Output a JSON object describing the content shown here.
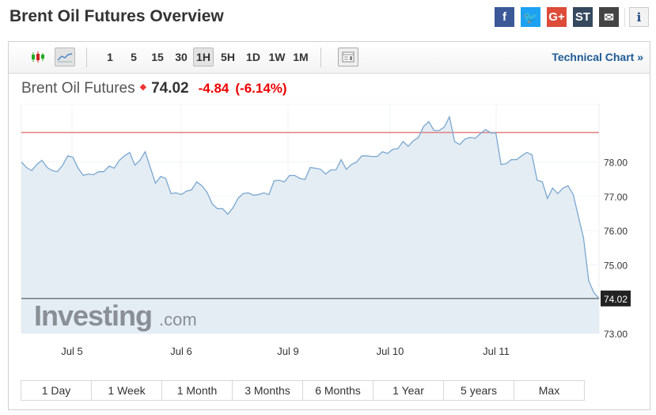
{
  "page_title": "Brent Oil Futures Overview",
  "social": [
    {
      "icon": "facebook-icon",
      "label": "f",
      "color": "#3b5998"
    },
    {
      "icon": "twitter-icon",
      "label": "🐦",
      "color": "#1da1f2"
    },
    {
      "icon": "google-plus-icon",
      "label": "G+",
      "color": "#dd4b39"
    },
    {
      "icon": "stocktwits-icon",
      "label": "ST",
      "color": "#34495e"
    },
    {
      "icon": "email-icon",
      "label": "✉",
      "color": "#444444"
    }
  ],
  "info_label": "i",
  "toolbar": {
    "intervals": [
      "1",
      "5",
      "15",
      "30",
      "1H",
      "5H",
      "1D",
      "1W",
      "1M"
    ],
    "active_interval": "1H",
    "technical_chart": "Technical Chart »"
  },
  "quote": {
    "name": "Brent Oil Futures",
    "price": "74.02",
    "change": "-4.84",
    "change_pct": "(-6.14%)",
    "direction": "down",
    "down_color": "#e00000"
  },
  "ranges": [
    "1 Day",
    "1 Week",
    "1 Month",
    "3 Months",
    "6 Months",
    "1 Year",
    "5 years",
    "Max"
  ],
  "watermark": "Investing.com",
  "chart_data": {
    "type": "area",
    "x_tick_labels": [
      "Jul 5",
      "Jul 6",
      "Jul 9",
      "Jul 10",
      "Jul 11"
    ],
    "y_tick_labels": [
      "78.00",
      "77.00",
      "76.00",
      "75.00",
      "73.00"
    ],
    "y_ticks": [
      78,
      77,
      76,
      75,
      73
    ],
    "ylim": [
      73,
      79.7
    ],
    "reference_line": {
      "value": 78.86,
      "color": "#e08080"
    },
    "last_price": {
      "value": 74.02,
      "label": "74.02"
    },
    "line_color": "#7ba7d0",
    "fill_color": "#e4edf4",
    "grid": true,
    "values": [
      78.0,
      77.84,
      77.75,
      77.93,
      78.05,
      77.84,
      77.75,
      77.72,
      77.91,
      78.18,
      78.14,
      77.82,
      77.61,
      77.65,
      77.63,
      77.72,
      77.72,
      77.88,
      77.82,
      78.05,
      78.18,
      78.28,
      77.91,
      78.05,
      78.3,
      77.84,
      77.38,
      77.58,
      77.52,
      77.08,
      77.1,
      77.05,
      77.15,
      77.19,
      77.42,
      77.31,
      77.12,
      76.78,
      76.64,
      76.64,
      76.48,
      76.66,
      76.94,
      77.08,
      77.1,
      77.03,
      77.05,
      77.1,
      77.05,
      77.45,
      77.47,
      77.42,
      77.61,
      77.61,
      77.52,
      77.49,
      77.84,
      77.82,
      77.79,
      77.65,
      77.77,
      77.77,
      78.07,
      77.79,
      77.93,
      78.0,
      78.18,
      78.18,
      78.16,
      78.16,
      78.3,
      78.25,
      78.37,
      78.39,
      78.6,
      78.46,
      78.62,
      78.72,
      79.04,
      79.18,
      78.92,
      78.92,
      79.02,
      79.32,
      78.6,
      78.51,
      78.67,
      78.72,
      78.69,
      78.83,
      78.95,
      78.85,
      78.85,
      77.93,
      77.95,
      78.07,
      78.07,
      78.18,
      78.28,
      78.21,
      77.47,
      77.42,
      76.94,
      77.24,
      77.08,
      77.24,
      77.31,
      77.05,
      76.41,
      75.78,
      74.54,
      74.19,
      74.02
    ]
  }
}
